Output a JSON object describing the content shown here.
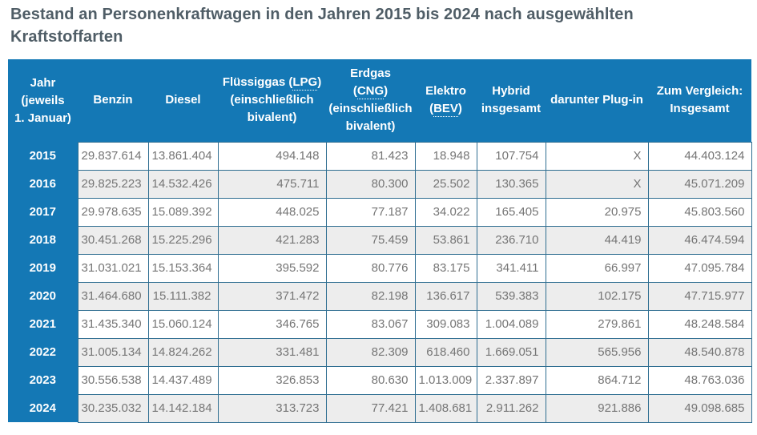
{
  "page": {
    "title": "Bestand an Personenkraftwagen in den Jahren 2015 bis 2024 nach ausgewählten Kraftstoffarten"
  },
  "colors": {
    "header_blue": "#1478b5",
    "grid_border_teal": "#2f6e91",
    "row_stripe_gray": "#ededed",
    "cell_text_gray": "#757575",
    "title_slate": "#4f5d66",
    "header_text": "#ffffff"
  },
  "chart_data": {
    "type": "table",
    "title": "Bestand an Personenkraftwagen in den Jahren 2015 bis 2024 nach ausgewählten Kraftstoffarten",
    "missing_value_symbol": "X",
    "header": {
      "abbreviations": [
        "LPG",
        "CNG",
        "BEV"
      ],
      "columns": [
        {
          "name": "jahr",
          "lines": [
            "Jahr",
            "(jeweils",
            "1. Januar)"
          ]
        },
        {
          "name": "benzin",
          "lines": [
            "Benzin"
          ]
        },
        {
          "name": "diesel",
          "lines": [
            "Diesel"
          ]
        },
        {
          "name": "fluessiggas",
          "lines": [
            "Flüssiggas (LPG)",
            "(einschließlich",
            "bivalent)"
          ]
        },
        {
          "name": "erdgas",
          "lines": [
            "Erdgas",
            "(CNG)",
            "(einschließlich",
            "bivalent)"
          ]
        },
        {
          "name": "elektro",
          "lines": [
            "Elektro",
            "(BEV)"
          ]
        },
        {
          "name": "hybrid",
          "lines": [
            "Hybrid",
            "insgesamt"
          ]
        },
        {
          "name": "plugin",
          "lines": [
            "darunter Plug-in"
          ]
        },
        {
          "name": "vergleich",
          "lines": [
            "Zum Vergleich:",
            "Insgesamt"
          ]
        }
      ]
    },
    "rows": [
      {
        "year": "2015",
        "cells": [
          "29.837.614",
          "13.861.404",
          "494.148",
          "81.423",
          "18.948",
          "107.754",
          "X",
          "44.403.124"
        ]
      },
      {
        "year": "2016",
        "cells": [
          "29.825.223",
          "14.532.426",
          "475.711",
          "80.300",
          "25.502",
          "130.365",
          "X",
          "45.071.209"
        ]
      },
      {
        "year": "2017",
        "cells": [
          "29.978.635",
          "15.089.392",
          "448.025",
          "77.187",
          "34.022",
          "165.405",
          "20.975",
          "45.803.560"
        ]
      },
      {
        "year": "2018",
        "cells": [
          "30.451.268",
          "15.225.296",
          "421.283",
          "75.459",
          "53.861",
          "236.710",
          "44.419",
          "46.474.594"
        ]
      },
      {
        "year": "2019",
        "cells": [
          "31.031.021",
          "15.153.364",
          "395.592",
          "80.776",
          "83.175",
          "341.411",
          "66.997",
          "47.095.784"
        ]
      },
      {
        "year": "2020",
        "cells": [
          "31.464.680",
          "15.111.382",
          "371.472",
          "82.198",
          "136.617",
          "539.383",
          "102.175",
          "47.715.977"
        ]
      },
      {
        "year": "2021",
        "cells": [
          "31.435.340",
          "15.060.124",
          "346.765",
          "83.067",
          "309.083",
          "1.004.089",
          "279.861",
          "48.248.584"
        ]
      },
      {
        "year": "2022",
        "cells": [
          "31.005.134",
          "14.824.262",
          "331.481",
          "82.309",
          "618.460",
          "1.669.051",
          "565.956",
          "48.540.878"
        ]
      },
      {
        "year": "2023",
        "cells": [
          "30.556.538",
          "14.437.489",
          "326.853",
          "80.630",
          "1.013.009",
          "2.337.897",
          "864.712",
          "48.763.036"
        ]
      },
      {
        "year": "2024",
        "cells": [
          "30.235.032",
          "14.142.184",
          "313.723",
          "77.421",
          "1.408.681",
          "2.911.262",
          "921.886",
          "49.098.685"
        ]
      }
    ]
  }
}
